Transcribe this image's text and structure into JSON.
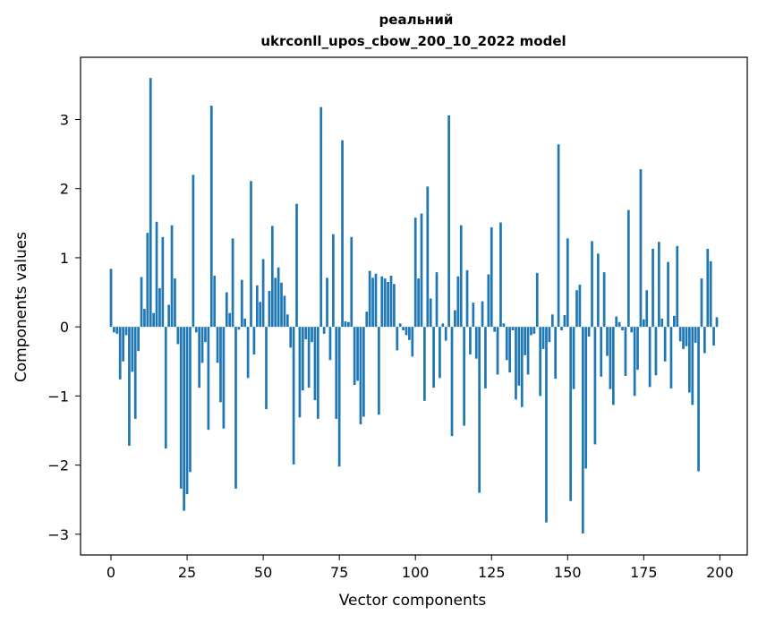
{
  "chart_data": {
    "type": "bar",
    "title": "реальний",
    "subtitle": "ukrconll_upos_cbow_200_10_2022 model",
    "xlabel": "Vector components",
    "ylabel": "Components values",
    "xlim": [
      -10,
      209
    ],
    "ylim": [
      -3.3,
      3.9
    ],
    "xticks": [
      0,
      25,
      50,
      75,
      100,
      125,
      150,
      175,
      200
    ],
    "xtick_labels": [
      "0",
      "25",
      "50",
      "75",
      "100",
      "125",
      "150",
      "175",
      "200"
    ],
    "yticks": [
      -3,
      -2,
      -1,
      0,
      1,
      2,
      3
    ],
    "ytick_labels": [
      "−3",
      "−2",
      "−1",
      "0",
      "1",
      "2",
      "3"
    ],
    "grid": false,
    "bar_color": "#1f77b4",
    "values": [
      0.84,
      -0.08,
      -0.1,
      -0.76,
      -0.5,
      -0.12,
      -1.72,
      -0.65,
      -1.33,
      -0.35,
      0.72,
      0.26,
      1.36,
      3.6,
      0.2,
      1.52,
      0.56,
      1.3,
      -1.76,
      0.32,
      1.47,
      0.7,
      -0.25,
      -2.34,
      -2.66,
      -2.42,
      -2.1,
      2.2,
      -0.08,
      -0.88,
      -0.52,
      -0.22,
      -1.49,
      3.2,
      0.74,
      -0.52,
      -1.09,
      -1.47,
      0.5,
      0.2,
      1.28,
      -2.34,
      -0.04,
      0.68,
      0.12,
      -0.74,
      2.11,
      -0.4,
      0.6,
      0.36,
      0.98,
      -1.19,
      0.52,
      1.46,
      0.71,
      0.86,
      0.64,
      0.45,
      0.18,
      -0.3,
      -1.99,
      1.78,
      -1.31,
      -0.92,
      -0.18,
      -0.88,
      -0.22,
      -1.06,
      -1.33,
      3.18,
      -0.1,
      0.71,
      -0.48,
      1.34,
      -1.33,
      -2.02,
      2.7,
      0.08,
      0.07,
      1.3,
      -0.84,
      -0.78,
      -1.41,
      -1.3,
      0.22,
      0.81,
      0.71,
      0.77,
      -1.27,
      0.73,
      0.7,
      0.65,
      0.74,
      0.62,
      -0.34,
      0.05,
      -0.05,
      -0.12,
      -0.19,
      -0.43,
      1.58,
      0.7,
      1.64,
      -1.07,
      2.03,
      0.41,
      -0.88,
      0.79,
      -0.74,
      0.05,
      -0.2,
      3.06,
      -1.58,
      0.24,
      0.73,
      1.47,
      -1.43,
      0.82,
      -0.4,
      0.35,
      -0.46,
      -2.4,
      0.37,
      -0.89,
      0.76,
      1.44,
      -0.07,
      -0.69,
      1.51,
      0.05,
      -0.48,
      -0.66,
      -0.05,
      -1.05,
      -0.85,
      -1.16,
      -0.41,
      -0.69,
      -0.12,
      -0.1,
      0.78,
      -1.0,
      -0.32,
      -2.83,
      -0.22,
      0.18,
      -0.75,
      2.64,
      -0.05,
      0.17,
      1.28,
      -2.52,
      -0.9,
      0.53,
      0.61,
      -2.99,
      -2.05,
      -0.14,
      1.24,
      -1.7,
      1.06,
      -0.72,
      0.79,
      -0.42,
      -0.9,
      -1.13,
      0.15,
      0.07,
      -0.05,
      -0.71,
      1.69,
      -0.08,
      -1.0,
      -0.62,
      2.28,
      0.11,
      0.53,
      -0.87,
      1.13,
      -0.7,
      1.23,
      0.12,
      -0.5,
      0.94,
      -0.89,
      0.16,
      1.17,
      -0.21,
      -0.32,
      -0.28,
      -0.95,
      -1.13,
      -0.23,
      -2.09,
      0.7,
      -0.38,
      1.13,
      0.95,
      -0.27,
      0.14
    ]
  }
}
